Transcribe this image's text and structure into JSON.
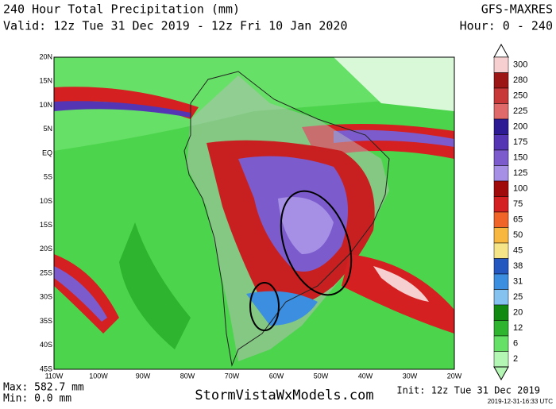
{
  "header": {
    "title": "240 Hour Total Precipitation (mm)",
    "valid": "Valid: 12z Tue 31 Dec 2019 - 12z Fri 10 Jan 2020",
    "model": "GFS-MAXRES",
    "hours": "Hour: 0 - 240"
  },
  "map": {
    "lat_labels": [
      "20N",
      "15N",
      "10N",
      "5N",
      "EQ",
      "5S",
      "10S",
      "15S",
      "20S",
      "25S",
      "30S",
      "35S",
      "40S",
      "45S"
    ],
    "lon_labels": [
      "110W",
      "100W",
      "90W",
      "80W",
      "70W",
      "60W",
      "50W",
      "40W",
      "30W",
      "20W"
    ]
  },
  "colorbar": {
    "levels": [
      300,
      280,
      250,
      225,
      200,
      175,
      150,
      125,
      100,
      75,
      65,
      50,
      45,
      38,
      31,
      25,
      20,
      12,
      6,
      2
    ],
    "colors": [
      "#f6d0d0",
      "#9c1616",
      "#c83838",
      "#e06a6a",
      "#2c1a94",
      "#5436b4",
      "#7c5ccc",
      "#a690e6",
      "#a00a0a",
      "#d42020",
      "#f06428",
      "#f8b840",
      "#f6e488",
      "#2458c0",
      "#3c8ee0",
      "#86c2f0",
      "#128a12",
      "#2eb42e",
      "#66e066",
      "#b4f6b4"
    ]
  },
  "footer": {
    "max": "Max: 582.7 mm",
    "min": "Min: 0.0 mm",
    "site": "StormVistaWxModels.com",
    "init": "Init: 12z Tue 31 Dec 2019",
    "stamp": "2019-12-31-16:33 UTC"
  }
}
